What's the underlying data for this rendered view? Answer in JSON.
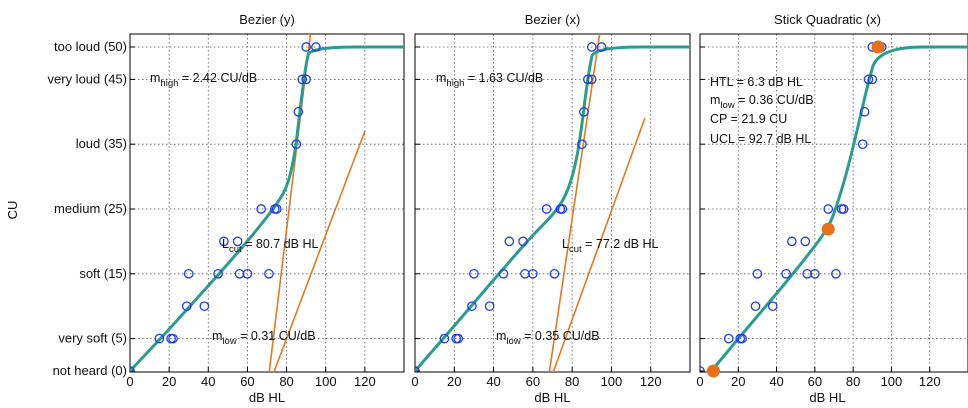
{
  "figure": {
    "ylabel": "CU"
  },
  "colors": {
    "fit": "#2a9d8f",
    "tangent": "#e07b20",
    "marker": "#1f3fe0",
    "special": "#e8701a",
    "grid": "#555555"
  },
  "chart_data": [
    {
      "type": "scatter",
      "title": "Bezier (y)",
      "xlabel": "dB HL",
      "ylabel": "CU",
      "xlim": [
        0,
        140
      ],
      "ylim": [
        0,
        50
      ],
      "xticks": [
        0,
        20,
        40,
        60,
        80,
        100,
        120
      ],
      "yticks": [
        0,
        5,
        15,
        25,
        35,
        45,
        50
      ],
      "ytick_labels": [
        "not heard (0)",
        "very soft (5)",
        "soft (15)",
        "medium (25)",
        "loud (35)",
        "very loud (45)",
        "too loud (50)"
      ],
      "grid": true,
      "points": [
        [
          0,
          0
        ],
        [
          15,
          5
        ],
        [
          21,
          5
        ],
        [
          22,
          5
        ],
        [
          29,
          10
        ],
        [
          38,
          10
        ],
        [
          30,
          15
        ],
        [
          45,
          15
        ],
        [
          56,
          15
        ],
        [
          60,
          15
        ],
        [
          71,
          15
        ],
        [
          48,
          20
        ],
        [
          55,
          20
        ],
        [
          67,
          25
        ],
        [
          74,
          25
        ],
        [
          75,
          25
        ],
        [
          85,
          35
        ],
        [
          86,
          40
        ],
        [
          88,
          45
        ],
        [
          90,
          45
        ],
        [
          90,
          50
        ],
        [
          95,
          50
        ]
      ],
      "fit_curve": [
        [
          0,
          0
        ],
        [
          15,
          4.8
        ],
        [
          30,
          9.8
        ],
        [
          45,
          14.8
        ],
        [
          60,
          20
        ],
        [
          72,
          24.5
        ],
        [
          80,
          28
        ],
        [
          84,
          33
        ],
        [
          86,
          38
        ],
        [
          88,
          43
        ],
        [
          90,
          47.5
        ],
        [
          92,
          50
        ],
        [
          140,
          50
        ]
      ],
      "tangents": [
        {
          "from": [
            70,
            -3
          ],
          "to": [
            120,
            37
          ]
        },
        {
          "from": [
            70,
            -3
          ],
          "to": [
            93,
            54
          ]
        }
      ],
      "annotations": [
        {
          "base": "m",
          "sub": "high",
          "rest": " = 2.42 CU/dB"
        },
        {
          "base": "L",
          "sub": "cut",
          "rest": " = 80.7 dB HL"
        },
        {
          "base": "m",
          "sub": "low",
          "rest": " = 0.31 CU/dB"
        }
      ]
    },
    {
      "type": "scatter",
      "title": "Bezier (x)",
      "xlabel": "dB HL",
      "xlim": [
        0,
        140
      ],
      "ylim": [
        0,
        50
      ],
      "xticks": [
        0,
        20,
        40,
        60,
        80,
        100,
        120
      ],
      "grid": true,
      "points": [
        [
          0,
          0
        ],
        [
          15,
          5
        ],
        [
          21,
          5
        ],
        [
          22,
          5
        ],
        [
          29,
          10
        ],
        [
          38,
          10
        ],
        [
          30,
          15
        ],
        [
          45,
          15
        ],
        [
          56,
          15
        ],
        [
          60,
          15
        ],
        [
          71,
          15
        ],
        [
          48,
          20
        ],
        [
          55,
          20
        ],
        [
          67,
          25
        ],
        [
          74,
          25
        ],
        [
          75,
          25
        ],
        [
          85,
          35
        ],
        [
          86,
          40
        ],
        [
          88,
          45
        ],
        [
          90,
          45
        ],
        [
          90,
          50
        ],
        [
          95,
          50
        ]
      ],
      "fit_curve": [
        [
          0,
          0
        ],
        [
          15,
          5.2
        ],
        [
          30,
          10.5
        ],
        [
          45,
          15.8
        ],
        [
          60,
          21
        ],
        [
          70,
          24
        ],
        [
          77,
          27
        ],
        [
          82,
          32
        ],
        [
          85,
          38
        ],
        [
          87,
          43
        ],
        [
          89,
          47
        ],
        [
          91,
          50
        ],
        [
          140,
          50
        ]
      ],
      "tangents": [
        {
          "from": [
            67,
            -3
          ],
          "to": [
            117,
            39
          ]
        },
        {
          "from": [
            67,
            -3
          ],
          "to": [
            95,
            54
          ]
        }
      ],
      "annotations": [
        {
          "base": "m",
          "sub": "high",
          "rest": " = 1.63 CU/dB"
        },
        {
          "base": "L",
          "sub": "cut",
          "rest": " = 77.2 dB HL"
        },
        {
          "base": "m",
          "sub": "low",
          "rest": " = 0.35 CU/dB"
        }
      ]
    },
    {
      "type": "scatter",
      "title": "Stick Quadratic (x)",
      "xlabel": "dB HL",
      "xlim": [
        0,
        140
      ],
      "ylim": [
        0,
        50
      ],
      "xticks": [
        0,
        20,
        40,
        60,
        80,
        100,
        120
      ],
      "grid": true,
      "points": [
        [
          0,
          0
        ],
        [
          15,
          5
        ],
        [
          21,
          5
        ],
        [
          22,
          5
        ],
        [
          29,
          10
        ],
        [
          38,
          10
        ],
        [
          30,
          15
        ],
        [
          45,
          15
        ],
        [
          56,
          15
        ],
        [
          60,
          15
        ],
        [
          71,
          15
        ],
        [
          48,
          20
        ],
        [
          55,
          20
        ],
        [
          67,
          25
        ],
        [
          74,
          25
        ],
        [
          75,
          25
        ],
        [
          85,
          35
        ],
        [
          86,
          40
        ],
        [
          88,
          45
        ],
        [
          90,
          45
        ],
        [
          90,
          50
        ],
        [
          95,
          50
        ]
      ],
      "special_points": [
        [
          7,
          0
        ],
        [
          67,
          21.9
        ],
        [
          93,
          50
        ]
      ],
      "fit_curve": [
        [
          6,
          0
        ],
        [
          20,
          5
        ],
        [
          35,
          10.2
        ],
        [
          50,
          15.5
        ],
        [
          67,
          21.9
        ],
        [
          72,
          26
        ],
        [
          77,
          31
        ],
        [
          82,
          37
        ],
        [
          87,
          43.5
        ],
        [
          93,
          50
        ],
        [
          140,
          50
        ]
      ],
      "annotations": [
        {
          "base": "HTL",
          "sub": "",
          "rest": " = 6.3 dB HL"
        },
        {
          "base": "m",
          "sub": "low",
          "rest": " = 0.36 CU/dB"
        },
        {
          "base": "CP",
          "sub": "",
          "rest": " = 21.9 CU"
        },
        {
          "base": "UCL",
          "sub": "",
          "rest": " = 92.7 dB HL"
        }
      ]
    }
  ]
}
